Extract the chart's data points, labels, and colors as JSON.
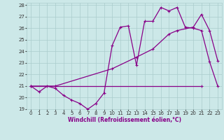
{
  "xlabel": "Windchill (Refroidissement éolien,°C)",
  "bg_color": "#cce8e8",
  "grid_color": "#aacccc",
  "line_color": "#880088",
  "xlim": [
    -0.5,
    23.5
  ],
  "ylim": [
    19,
    28.2
  ],
  "yticks": [
    19,
    20,
    21,
    22,
    23,
    24,
    25,
    26,
    27,
    28
  ],
  "xticks": [
    0,
    1,
    2,
    3,
    4,
    5,
    6,
    7,
    8,
    9,
    10,
    11,
    12,
    13,
    14,
    15,
    16,
    17,
    18,
    19,
    20,
    21,
    22,
    23
  ],
  "series1_x": [
    0,
    1,
    2,
    3,
    4,
    5,
    6,
    7,
    8,
    9,
    10,
    11,
    12,
    13,
    14,
    15,
    16,
    17,
    18,
    19,
    20,
    21,
    22,
    23
  ],
  "series1_y": [
    21.0,
    20.5,
    21.0,
    20.8,
    20.2,
    19.8,
    19.5,
    19.0,
    19.5,
    20.4,
    24.5,
    26.1,
    26.2,
    22.8,
    26.6,
    26.6,
    27.8,
    27.5,
    27.8,
    26.1,
    26.0,
    25.8,
    23.1,
    21.0
  ],
  "series2_x": [
    0,
    3,
    21
  ],
  "series2_y": [
    21.0,
    21.0,
    21.0
  ],
  "series3_x": [
    0,
    3,
    10,
    13,
    15,
    17,
    18,
    20,
    21,
    22,
    23
  ],
  "series3_y": [
    21.0,
    21.0,
    22.5,
    23.5,
    24.2,
    25.5,
    25.8,
    26.1,
    27.2,
    25.8,
    23.2
  ]
}
